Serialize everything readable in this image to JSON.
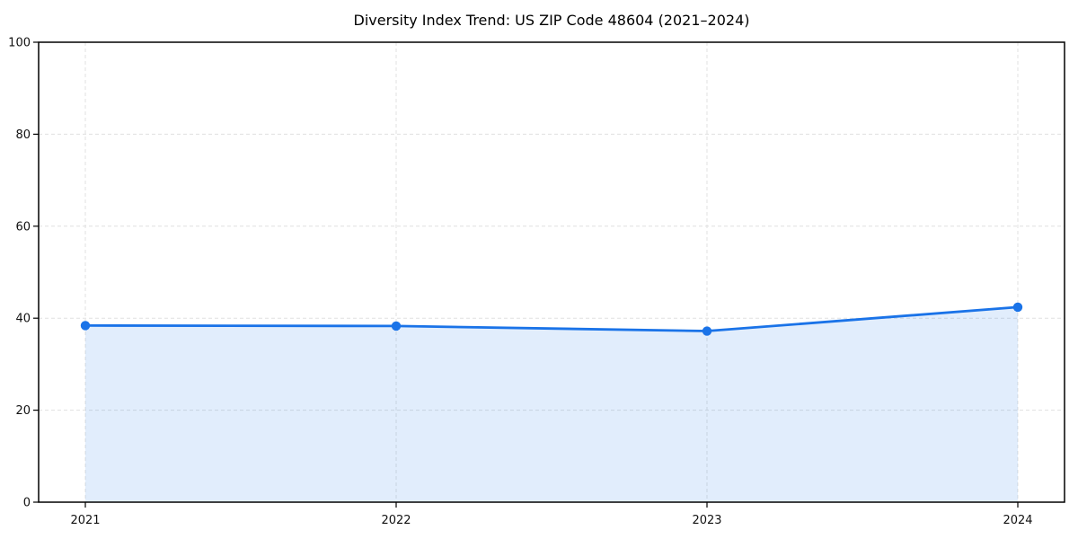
{
  "chart_data": {
    "type": "area",
    "title": "Diversity Index Trend: US ZIP Code 48604 (2021–2024)",
    "xlabel": "",
    "ylabel": "",
    "categories": [
      "2021",
      "2022",
      "2023",
      "2024"
    ],
    "values": [
      38.4,
      38.3,
      37.2,
      42.4
    ],
    "ylim": [
      0,
      100
    ],
    "yticks": [
      0,
      20,
      40,
      60,
      80,
      100
    ],
    "grid": {
      "visible": true,
      "style": "dashed",
      "color": "#e0e0e0"
    },
    "line_color": "#1a73e8",
    "marker_color": "#1a73e8",
    "area_fill": "rgba(26,115,232,0.13)",
    "axis_color": "#000000",
    "text_color": "#111111",
    "legend": {
      "visible": false
    }
  }
}
